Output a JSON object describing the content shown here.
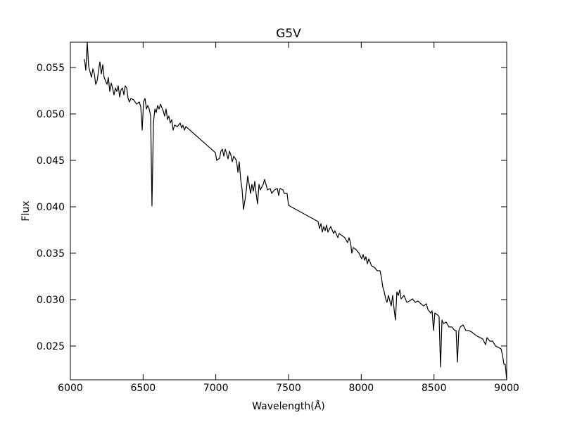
{
  "chart_data": {
    "type": "line",
    "title": "G5V",
    "x_label": "Wavelength(Å)",
    "y_label": "Flux",
    "color": "#000000",
    "xlim": [
      6000,
      9000
    ],
    "xticks": [
      6000,
      6500,
      7000,
      7500,
      8000,
      8500,
      9000
    ],
    "ylim": [
      0.02136,
      0.05773
    ],
    "yticks": [
      0.025,
      {
        "value": 0.03,
        "label": "0.030"
      },
      0.035,
      {
        "value": 0.04,
        "label": "0.040"
      },
      0.045,
      {
        "value": 0.05,
        "label": "0.050"
      },
      0.055
    ],
    "x": [
      6097,
      6106,
      6116,
      6126,
      6135,
      6145,
      6155,
      6165,
      6174,
      6184,
      6194,
      6203,
      6213,
      6223,
      6232,
      6242,
      6252,
      6261,
      6271,
      6281,
      6290,
      6300,
      6310,
      6319,
      6329,
      6339,
      6348,
      6358,
      6368,
      6377,
      6387,
      6397,
      6406,
      6416,
      6435,
      6455,
      6474,
      6484,
      6494,
      6503,
      6513,
      6523,
      6532,
      6542,
      6552,
      6561,
      6571,
      6581,
      6590,
      6600,
      6610,
      6619,
      6639,
      6648,
      6658,
      6668,
      6677,
      6687,
      6697,
      6706,
      6716,
      6735,
      6755,
      6765,
      6774,
      6784,
      6794,
      6997,
      7006,
      7026,
      7035,
      7045,
      7055,
      7065,
      7074,
      7084,
      7094,
      7103,
      7113,
      7123,
      7142,
      7152,
      7161,
      7171,
      7181,
      7190,
      7200,
      7210,
      7219,
      7229,
      7239,
      7248,
      7258,
      7268,
      7277,
      7287,
      7297,
      7306,
      7326,
      7335,
      7345,
      7355,
      7374,
      7384,
      7403,
      7423,
      7432,
      7442,
      7461,
      7471,
      7490,
      7500,
      7703,
      7713,
      7723,
      7732,
      7742,
      7752,
      7761,
      7771,
      7790,
      7810,
      7819,
      7839,
      7848,
      7868,
      7887,
      7906,
      7916,
      7926,
      7935,
      7945,
      7965,
      7984,
      8003,
      8013,
      8023,
      8032,
      8042,
      8052,
      8071,
      8090,
      8110,
      8129,
      8139,
      8148,
      8158,
      8168,
      8177,
      8187,
      8197,
      8206,
      8216,
      8226,
      8235,
      8245,
      8255,
      8265,
      8274,
      8294,
      8313,
      8332,
      8352,
      8371,
      8390,
      8410,
      8429,
      8448,
      8458,
      8477,
      8487,
      8497,
      8506,
      8526,
      8535,
      8545,
      8555,
      8565,
      8584,
      8603,
      8623,
      8642,
      8652,
      8661,
      8671,
      8681,
      8700,
      8719,
      8739,
      8758,
      8777,
      8797,
      8816,
      8835,
      8855,
      8865,
      8884,
      8903,
      8923,
      8942,
      8961,
      8971,
      8981,
      8990,
      9000
    ],
    "values": [
      0.05591,
      0.0547,
      0.05773,
      0.05508,
      0.05455,
      0.05394,
      0.05485,
      0.05432,
      0.05318,
      0.05356,
      0.0547,
      0.05561,
      0.05432,
      0.0553,
      0.05394,
      0.05356,
      0.05318,
      0.05394,
      0.05242,
      0.05333,
      0.0528,
      0.05205,
      0.0528,
      0.05242,
      0.05303,
      0.05182,
      0.05258,
      0.0528,
      0.05205,
      0.05303,
      0.0528,
      0.05167,
      0.05129,
      0.05167,
      0.05152,
      0.05106,
      0.05129,
      0.05076,
      0.04826,
      0.05129,
      0.05167,
      0.05053,
      0.05091,
      0.05053,
      0.04977,
      0.04008,
      0.04902,
      0.05053,
      0.05015,
      0.05091,
      0.05053,
      0.05106,
      0.0503,
      0.04977,
      0.05053,
      0.04939,
      0.04977,
      0.04902,
      0.04939,
      0.04826,
      0.04879,
      0.04864,
      0.04902,
      0.04849,
      0.04879,
      0.04826,
      0.04864,
      0.04583,
      0.045,
      0.04523,
      0.04599,
      0.04621,
      0.04545,
      0.04621,
      0.04576,
      0.04515,
      0.04599,
      0.04561,
      0.04485,
      0.04545,
      0.045,
      0.04371,
      0.04485,
      0.04295,
      0.04182,
      0.0397,
      0.04068,
      0.04182,
      0.04333,
      0.04242,
      0.04144,
      0.04242,
      0.04167,
      0.04273,
      0.04144,
      0.0403,
      0.04242,
      0.04182,
      0.04242,
      0.04295,
      0.04242,
      0.04182,
      0.04197,
      0.04144,
      0.04182,
      0.04197,
      0.04121,
      0.04197,
      0.04182,
      0.04144,
      0.04144,
      0.04015,
      0.03841,
      0.03765,
      0.03818,
      0.03727,
      0.03788,
      0.03742,
      0.03803,
      0.03727,
      0.03788,
      0.03712,
      0.03742,
      0.03667,
      0.03712,
      0.03689,
      0.03667,
      0.03614,
      0.03667,
      0.03614,
      0.035,
      0.03561,
      0.03538,
      0.035,
      0.03439,
      0.03485,
      0.03424,
      0.03462,
      0.03386,
      0.03439,
      0.03364,
      0.03348,
      0.03311,
      0.03311,
      0.03235,
      0.03136,
      0.03083,
      0.03008,
      0.0297,
      0.03045,
      0.02985,
      0.02932,
      0.03045,
      0.02894,
      0.0278,
      0.03083,
      0.03045,
      0.03106,
      0.03008,
      0.03045,
      0.0297,
      0.02985,
      0.03008,
      0.0297,
      0.02985,
      0.02955,
      0.02932,
      0.02955,
      0.02894,
      0.02856,
      0.02879,
      0.02667,
      0.02856,
      0.02833,
      0.02818,
      0.02273,
      0.0278,
      0.02742,
      0.02758,
      0.02705,
      0.02705,
      0.02667,
      0.02667,
      0.02326,
      0.02667,
      0.02705,
      0.02727,
      0.02667,
      0.02667,
      0.02652,
      0.02629,
      0.02606,
      0.02591,
      0.02576,
      0.02515,
      0.02591,
      0.02553,
      0.02553,
      0.025,
      0.02485,
      0.0247,
      0.02402,
      0.02303,
      0.02303,
      0.02136
    ]
  }
}
